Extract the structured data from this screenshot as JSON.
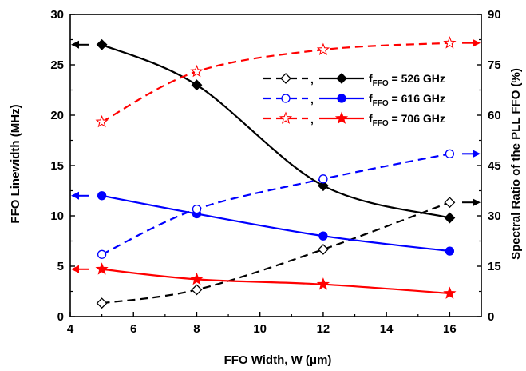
{
  "chart_data": {
    "type": "line",
    "xlabel_prefix": "FFO Width, W (",
    "xlabel_unit": "μm",
    "xlabel_suffix": ")",
    "ylabel": "FFO Linewidth (MHz)",
    "y2label": "Spectral Ratio of the PLL FFO (%)",
    "xlim": [
      4,
      17
    ],
    "ylim": [
      0,
      30
    ],
    "y2lim": [
      0,
      90
    ],
    "xticks": [
      4,
      6,
      8,
      10,
      12,
      14,
      16
    ],
    "yticks": [
      0,
      5,
      10,
      15,
      20,
      25,
      30
    ],
    "y2ticks": [
      0,
      15,
      30,
      45,
      60,
      75,
      90
    ],
    "legend_position": "upper-right",
    "legend_separator": ",",
    "legend": [
      {
        "label_f": "f",
        "label_sub": "FFO",
        "label_rest": " = 526 GHz",
        "color": "#000000"
      },
      {
        "label_f": "f",
        "label_sub": "FFO",
        "label_rest": " = 616 GHz",
        "color": "#0000ff"
      },
      {
        "label_f": "f",
        "label_sub": "FFO",
        "label_rest": " = 706 GHz",
        "color": "#ff0000"
      }
    ],
    "series": [
      {
        "group": "526",
        "kind": "linewidth",
        "axis": "left",
        "color": "#000000",
        "marker": "diamond",
        "filled": true,
        "dashed": false,
        "x": [
          5,
          8,
          12,
          16
        ],
        "y": [
          27.0,
          23.0,
          13.0,
          9.8
        ]
      },
      {
        "group": "526",
        "kind": "spectral-ratio",
        "axis": "right",
        "color": "#000000",
        "marker": "diamond",
        "filled": false,
        "dashed": true,
        "x": [
          5,
          8,
          12,
          16
        ],
        "y": [
          4,
          8,
          20,
          34
        ]
      },
      {
        "group": "616",
        "kind": "linewidth",
        "axis": "left",
        "color": "#0000ff",
        "marker": "circle",
        "filled": true,
        "dashed": false,
        "x": [
          5,
          8,
          12,
          16
        ],
        "y": [
          12.0,
          10.2,
          8.0,
          6.5
        ]
      },
      {
        "group": "616",
        "kind": "spectral-ratio",
        "axis": "right",
        "color": "#0000ff",
        "marker": "circle",
        "filled": false,
        "dashed": true,
        "x": [
          5,
          8,
          12,
          16
        ],
        "y": [
          18.5,
          32,
          41,
          48.5
        ]
      },
      {
        "group": "706",
        "kind": "linewidth",
        "axis": "left",
        "color": "#ff0000",
        "marker": "star",
        "filled": true,
        "dashed": false,
        "x": [
          5,
          8,
          12,
          16
        ],
        "y": [
          4.7,
          3.7,
          3.2,
          2.3
        ]
      },
      {
        "group": "706",
        "kind": "spectral-ratio",
        "axis": "right",
        "color": "#ff0000",
        "marker": "star",
        "filled": false,
        "dashed": true,
        "x": [
          5,
          8,
          12,
          16
        ],
        "y": [
          58,
          73,
          79.5,
          81.5
        ]
      }
    ],
    "axis_indicators": [
      {
        "series_group": "526",
        "kind": "linewidth",
        "side": "left",
        "value": 27.0,
        "color": "#000000"
      },
      {
        "series_group": "616",
        "kind": "linewidth",
        "side": "left",
        "value": 12.0,
        "color": "#0000ff"
      },
      {
        "series_group": "706",
        "kind": "linewidth",
        "side": "left",
        "value": 4.7,
        "color": "#ff0000"
      },
      {
        "series_group": "526",
        "kind": "spectral-ratio",
        "side": "right",
        "value": 34,
        "color": "#000000"
      },
      {
        "series_group": "616",
        "kind": "spectral-ratio",
        "side": "right",
        "value": 48.5,
        "color": "#0000ff"
      },
      {
        "series_group": "706",
        "kind": "spectral-ratio",
        "side": "right",
        "value": 81.5,
        "color": "#ff0000"
      }
    ]
  }
}
